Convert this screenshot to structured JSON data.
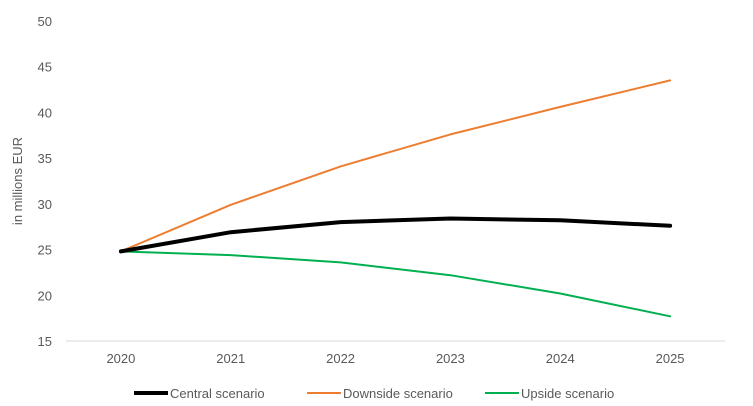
{
  "chart_data": {
    "type": "line",
    "title": "",
    "xlabel": "",
    "ylabel": "in millions EUR",
    "categories": [
      "2020",
      "2021",
      "2022",
      "2023",
      "2024",
      "2025"
    ],
    "ylim": [
      15,
      50
    ],
    "yticks": [
      15,
      20,
      25,
      30,
      35,
      40,
      45,
      50
    ],
    "grid": false,
    "legend_position": "bottom",
    "series": [
      {
        "name": "Central scenario",
        "color": "#000000",
        "values": [
          24.8,
          26.9,
          28.0,
          28.4,
          28.2,
          27.6
        ]
      },
      {
        "name": "Downside scenario",
        "color": "#ED7D31",
        "values": [
          24.8,
          29.9,
          34.1,
          37.6,
          40.6,
          43.5
        ]
      },
      {
        "name": "Upside scenario",
        "color": "#00B050",
        "values": [
          24.8,
          24.4,
          23.6,
          22.2,
          20.2,
          17.7
        ]
      }
    ]
  }
}
